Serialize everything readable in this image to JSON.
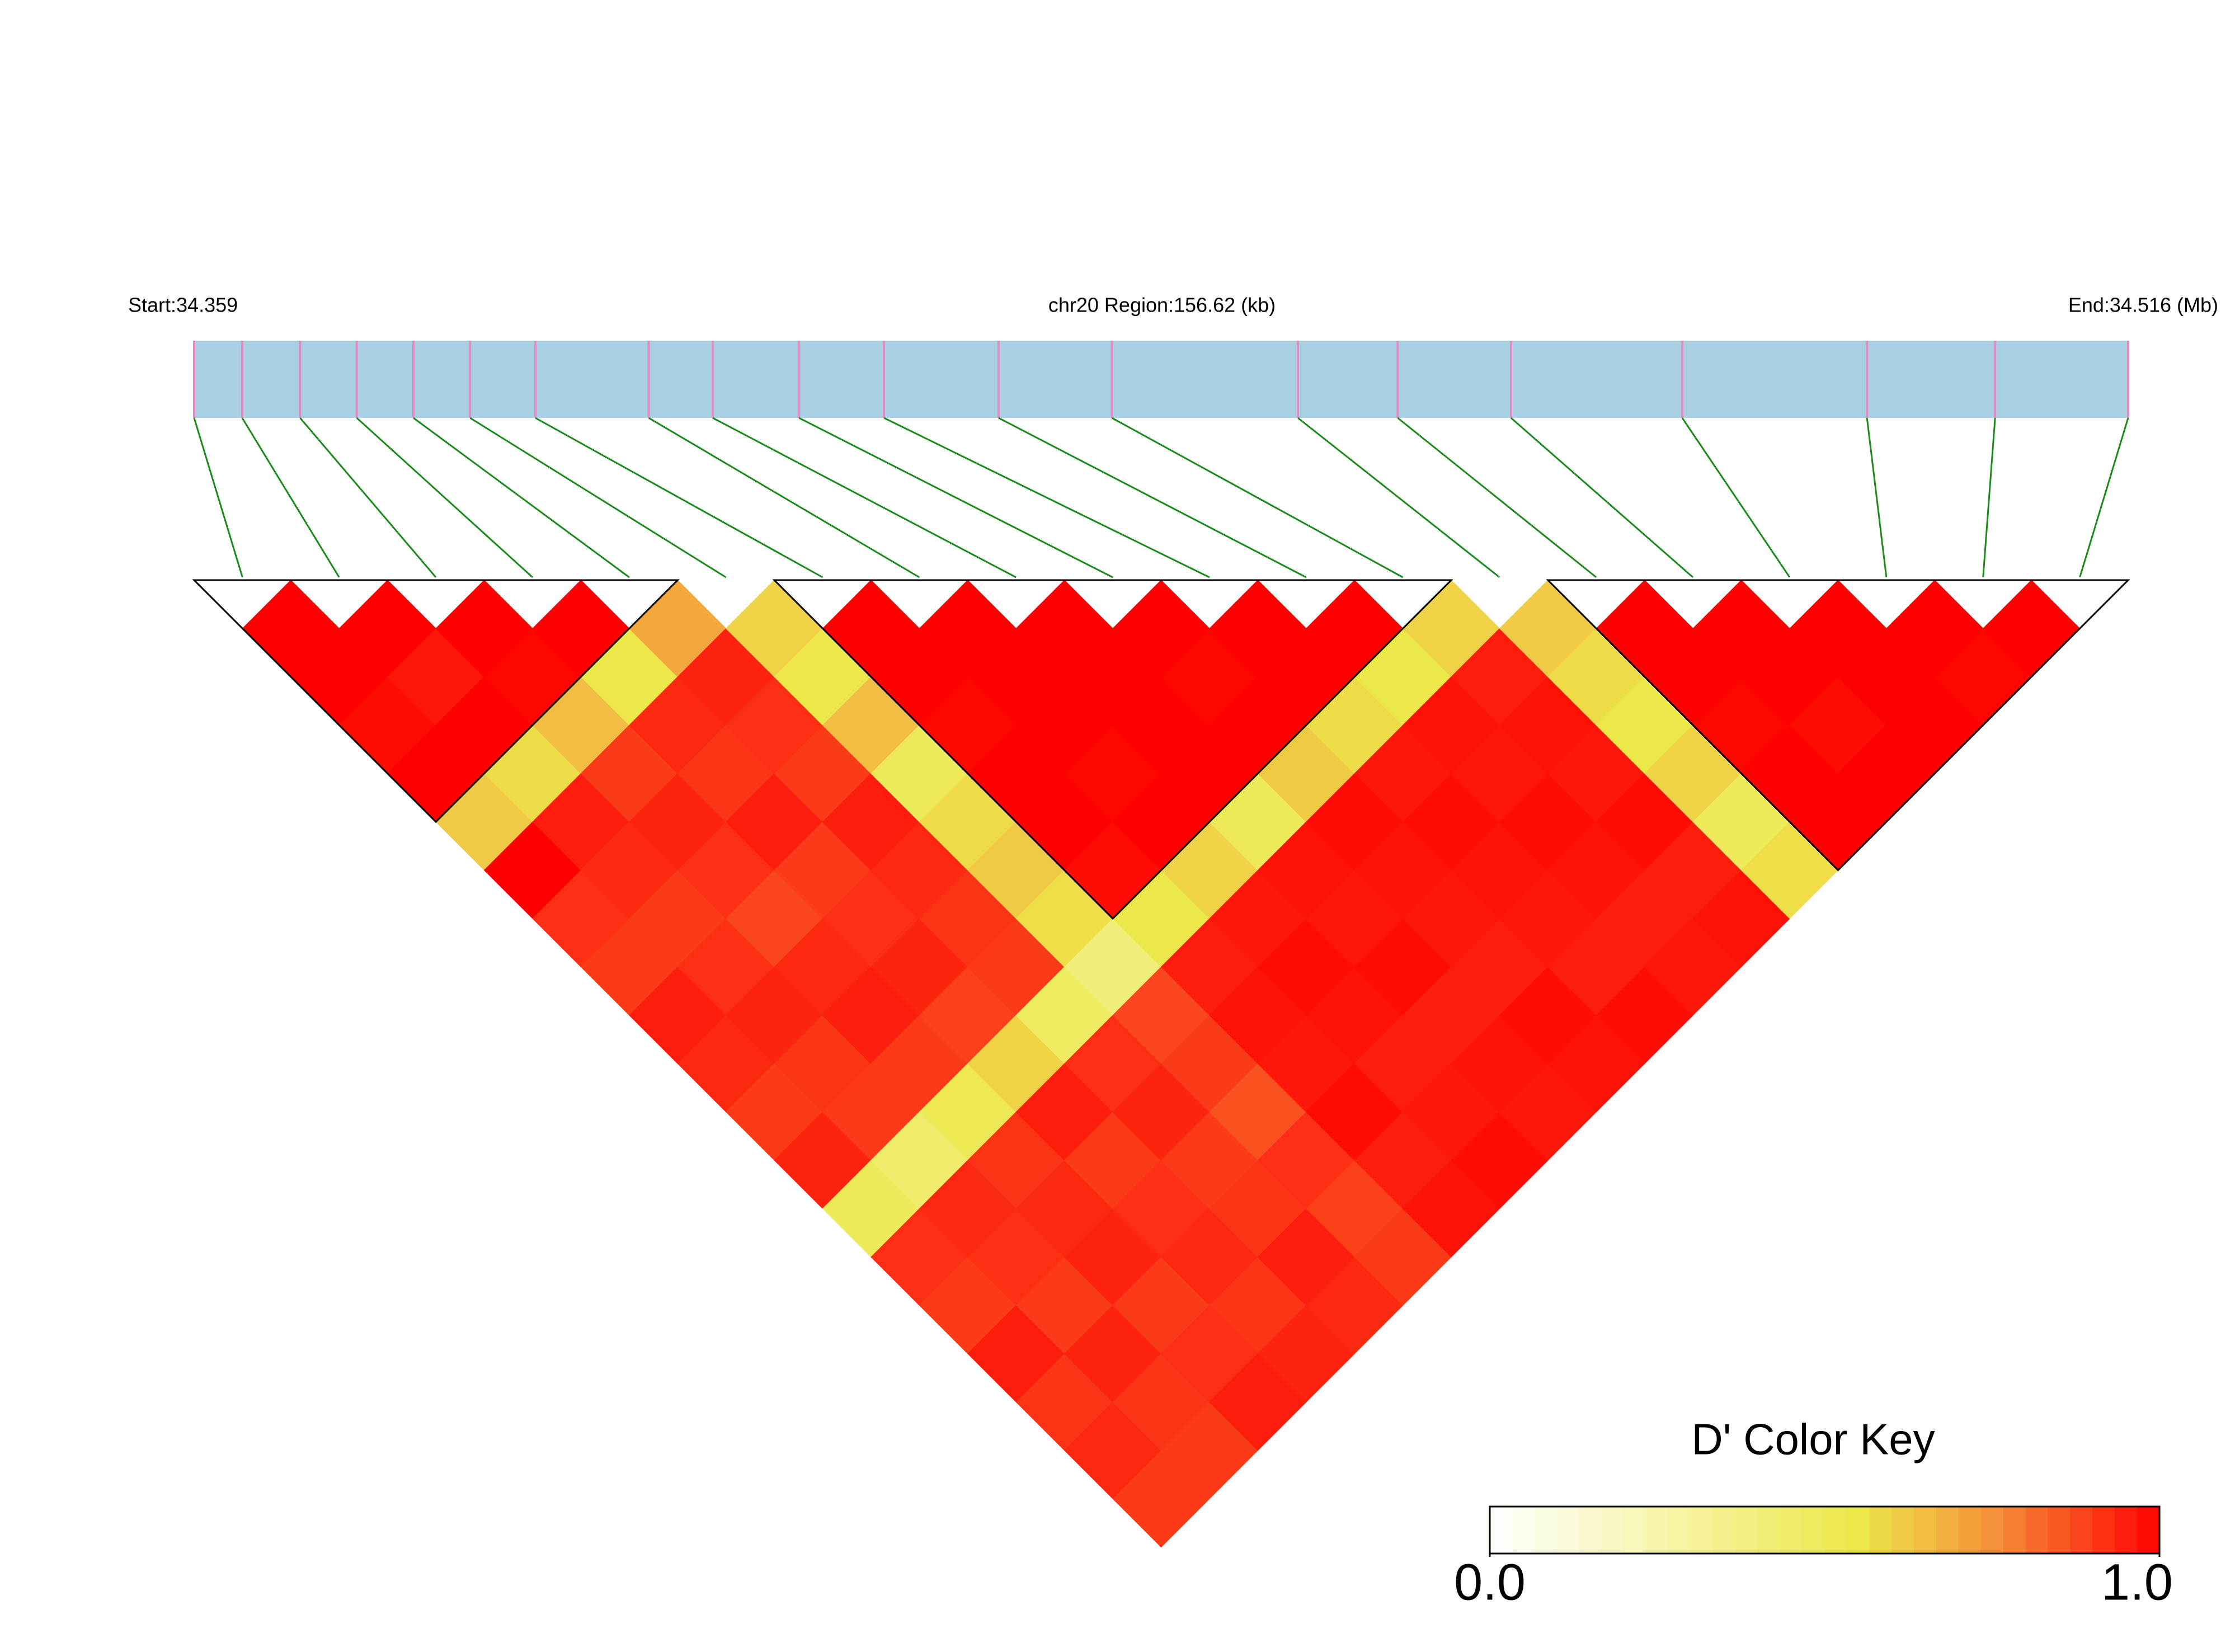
{
  "chart_data": {
    "type": "ld_heatmap",
    "start": {
      "value": 34.359,
      "label": "Start:34.359"
    },
    "region_label": "chr20 Region:156.62 (kb)",
    "end": {
      "value": 34.516,
      "label": "End:34.516 (Mb)"
    },
    "snp_positions": [
      34.359,
      34.3629,
      34.3676,
      34.3722,
      34.3768,
      34.3814,
      34.3867,
      34.3959,
      34.4011,
      34.4081,
      34.415,
      34.4243,
      34.4335,
      34.4486,
      34.4567,
      34.4659,
      34.4798,
      34.4948,
      34.5052,
      34.516
    ],
    "dprime": [
      [
        1,
        1,
        0.98,
        1,
        0.62,
        1,
        0.92,
        0.9,
        0.95,
        0.93,
        0.9,
        0.94,
        0.5,
        0.92,
        0.9,
        0.95,
        0.91,
        0.93,
        0.9
      ],
      [
        1,
        0.96,
        1,
        0.58,
        0.95,
        0.93,
        0.9,
        0.92,
        0.94,
        0.91,
        0.9,
        0.45,
        0.93,
        0.92,
        0.9,
        0.94,
        0.91,
        0.9
      ],
      [
        1,
        0.99,
        0.65,
        0.9,
        0.94,
        0.92,
        0.88,
        0.93,
        0.95,
        0.9,
        0.52,
        0.91,
        0.93,
        0.94,
        0.9,
        0.92,
        0.95
      ],
      [
        1,
        0.55,
        0.93,
        0.91,
        0.95,
        0.9,
        0.92,
        0.94,
        0.89,
        0.6,
        0.95,
        0.9,
        0.92,
        0.93,
        0.91,
        0.94
      ],
      [
        0.7,
        0.94,
        0.92,
        0.9,
        0.95,
        0.93,
        0.91,
        0.9,
        0.48,
        0.92,
        0.94,
        0.9,
        0.91,
        0.95,
        0.93
      ],
      [
        0.6,
        0.55,
        0.65,
        0.5,
        0.58,
        0.62,
        0.57,
        0.4,
        0.88,
        0.9,
        0.86,
        0.92,
        0.89,
        0.9
      ],
      [
        1,
        1,
        0.99,
        1,
        1,
        0.98,
        0.55,
        0.95,
        0.97,
        0.96,
        0.98,
        0.95,
        0.97
      ],
      [
        1,
        1,
        1,
        0.99,
        1,
        0.6,
        0.96,
        0.98,
        0.97,
        0.95,
        0.96,
        0.98
      ],
      [
        1,
        1,
        1,
        1,
        0.5,
        0.97,
        0.96,
        0.98,
        0.95,
        0.97,
        0.96
      ],
      [
        1,
        0.99,
        1,
        0.62,
        0.98,
        0.97,
        0.96,
        0.95,
        0.98,
        0.97
      ],
      [
        1,
        1,
        0.58,
        0.96,
        0.98,
        0.97,
        0.96,
        0.95,
        0.98
      ],
      [
        1,
        0.55,
        0.97,
        0.96,
        0.98,
        0.97,
        0.95,
        0.96
      ],
      [
        0.6,
        0.95,
        0.97,
        0.96,
        0.98,
        0.95,
        0.97
      ],
      [
        0.62,
        0.58,
        0.55,
        0.6,
        0.5,
        0.57
      ],
      [
        1,
        1,
        0.99,
        1,
        1
      ],
      [
        1,
        1,
        0.98,
        1
      ],
      [
        1,
        1,
        1
      ],
      [
        1,
        0.99
      ],
      [
        1
      ]
    ],
    "blocks": [
      [
        0,
        4
      ],
      [
        6,
        12
      ],
      [
        14,
        19
      ]
    ],
    "colorscale": [
      [
        0,
        "#ffffff"
      ],
      [
        0.55,
        "#ede84a"
      ],
      [
        0.75,
        "#f5913a"
      ],
      [
        1,
        "#ff0000"
      ]
    ],
    "bar_color": "#a9cfe2",
    "snp_color": "#e58ac4",
    "link_color": "#1a8a1a",
    "color_key": {
      "title": "D' Color Key",
      "ticks": [
        {
          "value": 0,
          "label": "0.0"
        },
        {
          "value": 1,
          "label": "1.0"
        }
      ]
    }
  }
}
